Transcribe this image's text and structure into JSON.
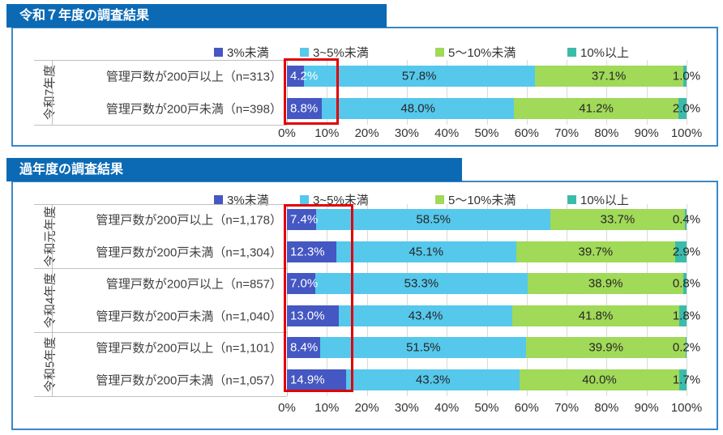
{
  "colors": {
    "title_bar": "#0c6ab5",
    "panel_border": "#3b87c8",
    "grid_line": "#d9d9d9",
    "axis_line": "#bfbfbf",
    "highlight_red": "#e00000",
    "segments": [
      "#4457c2",
      "#55c8ec",
      "#a1d958",
      "#3bbcab"
    ]
  },
  "legend": {
    "items": [
      {
        "label": "3%未満",
        "color": "#4457c2"
      },
      {
        "label": "3~5%未満",
        "color": "#55c8ec"
      },
      {
        "label": "5～10%未満",
        "color": "#a1d958"
      },
      {
        "label": "10%以上",
        "color": "#3bbcab"
      }
    ]
  },
  "chart_data": [
    {
      "type": "bar",
      "orientation": "horizontal",
      "stacked": true,
      "title": "令和７年度の調査結果",
      "stack_labels": [
        "3%未満",
        "3~5%未満",
        "5～10%未満",
        "10%以上"
      ],
      "groups": [
        {
          "label": "令和7年度",
          "rows": 2
        }
      ],
      "categories": [
        "管理戸数が200戸以上（n=313）",
        "管理戸数が200戸未満（n=398）"
      ],
      "values": [
        [
          4.2,
          57.8,
          37.1,
          1.0
        ],
        [
          8.8,
          48.0,
          41.2,
          2.0
        ]
      ],
      "x_ticks": [
        "0%",
        "10%",
        "20%",
        "30%",
        "40%",
        "50%",
        "60%",
        "70%",
        "80%",
        "90%",
        "100%"
      ],
      "xlim": [
        0,
        100
      ],
      "grid": true,
      "legend_position": "top",
      "highlight_first_segment": true
    },
    {
      "type": "bar",
      "orientation": "horizontal",
      "stacked": true,
      "title": "過年度の調査結果",
      "stack_labels": [
        "3%未満",
        "3~5%未満",
        "5～10%未満",
        "10%以上"
      ],
      "groups": [
        {
          "label": "令和元年度",
          "rows": 2
        },
        {
          "label": "令和4年度",
          "rows": 2
        },
        {
          "label": "令和5年度",
          "rows": 2
        }
      ],
      "categories": [
        "管理戸数が200戸以上（n=1,178）",
        "管理戸数が200戸未満（n=1,304）",
        "管理戸数が200戸以上（n=857）",
        "管理戸数が200戸未満（n=1,040）",
        "管理戸数が200戸以上（n=1,101）",
        "管理戸数が200戸未満（n=1,057）"
      ],
      "values": [
        [
          7.4,
          58.5,
          33.7,
          0.4
        ],
        [
          12.3,
          45.1,
          39.7,
          2.9
        ],
        [
          7.0,
          53.3,
          38.9,
          0.8
        ],
        [
          13.0,
          43.4,
          41.8,
          1.8
        ],
        [
          8.4,
          51.5,
          39.9,
          0.2
        ],
        [
          14.9,
          43.3,
          40.0,
          1.7
        ]
      ],
      "x_ticks": [
        "0%",
        "10%",
        "20%",
        "30%",
        "40%",
        "50%",
        "60%",
        "70%",
        "80%",
        "90%",
        "100%"
      ],
      "xlim": [
        0,
        100
      ],
      "grid": true,
      "legend_position": "top",
      "highlight_first_segment": true
    }
  ]
}
